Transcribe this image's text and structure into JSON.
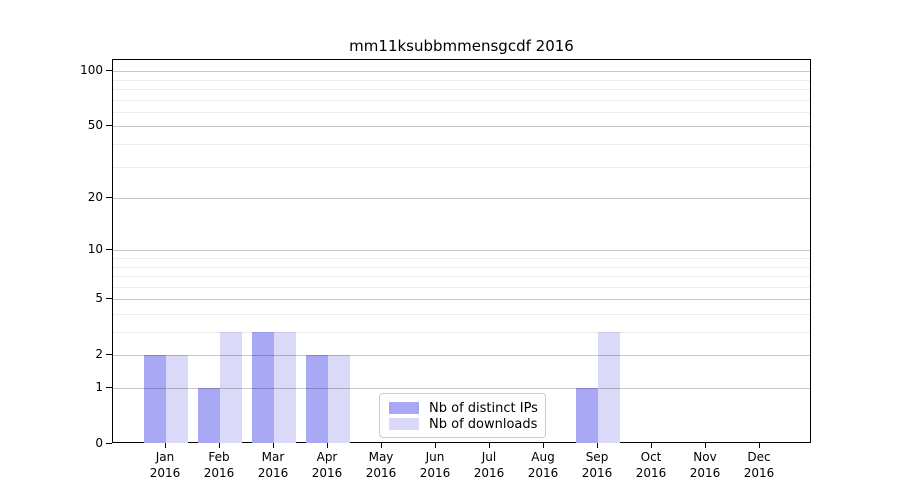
{
  "chart_data": {
    "type": "bar",
    "title": "mm11ksubbmmensgcdf 2016",
    "x": [
      {
        "month": "Jan",
        "year": "2016"
      },
      {
        "month": "Feb",
        "year": "2016"
      },
      {
        "month": "Mar",
        "year": "2016"
      },
      {
        "month": "Apr",
        "year": "2016"
      },
      {
        "month": "May",
        "year": "2016"
      },
      {
        "month": "Jun",
        "year": "2016"
      },
      {
        "month": "Jul",
        "year": "2016"
      },
      {
        "month": "Aug",
        "year": "2016"
      },
      {
        "month": "Sep",
        "year": "2016"
      },
      {
        "month": "Oct",
        "year": "2016"
      },
      {
        "month": "Nov",
        "year": "2016"
      },
      {
        "month": "Dec",
        "year": "2016"
      }
    ],
    "series": [
      {
        "name": "Nb of distinct IPs",
        "color": "#a8a8f5",
        "values": [
          2,
          1,
          3,
          2,
          0,
          0,
          0,
          0,
          1,
          0,
          0,
          0
        ]
      },
      {
        "name": "Nb of downloads",
        "color": "#dadaf8",
        "values": [
          2,
          3,
          3,
          2,
          0,
          0,
          0,
          0,
          3,
          0,
          0,
          0
        ]
      }
    ],
    "yaxis": {
      "scale": "log1p",
      "tick_values": [
        0,
        1,
        2,
        5,
        10,
        20,
        50,
        100
      ],
      "tick_labels": [
        "0",
        "1",
        "2",
        "5",
        "10",
        "20",
        "50",
        "100"
      ],
      "minor_gridline_values": [
        3,
        4,
        6,
        7,
        8,
        9,
        30,
        40,
        60,
        70,
        80,
        90
      ],
      "range": [
        0,
        115
      ]
    },
    "grid": {
      "orientation": "horizontal",
      "major_color": "rgba(0,0,0,0.22)",
      "minor_color": "rgba(0,0,0,0.07)"
    },
    "legend": {
      "position": "inside-lower-center"
    }
  }
}
